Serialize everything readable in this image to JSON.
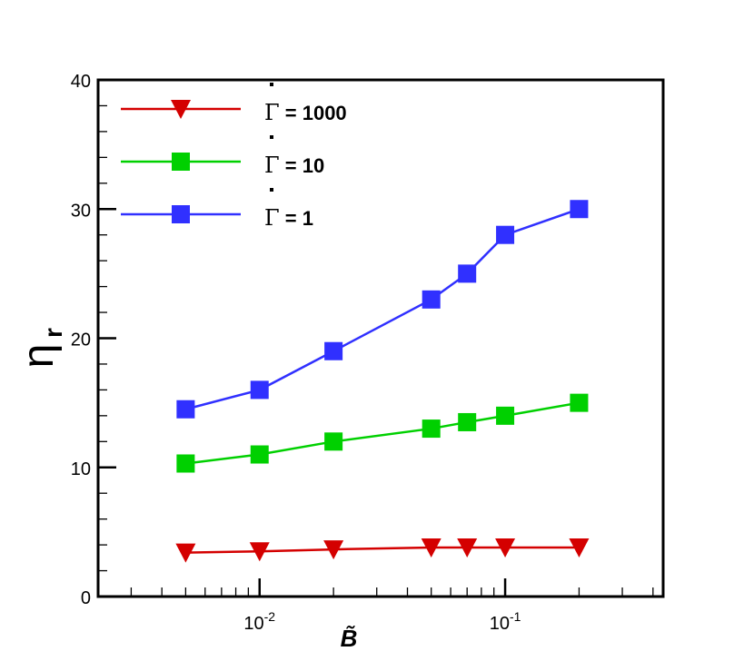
{
  "chart_data": {
    "type": "line",
    "title": "",
    "xlabel": "B̃",
    "ylabel": "η",
    "ylabel_subscript": "r",
    "xscale": "log",
    "xlim": [
      0.0022,
      0.44
    ],
    "ylim": [
      0,
      40
    ],
    "grid": false,
    "legend_position": "top-left",
    "yticks": [
      "0",
      "10",
      "20",
      "30",
      "40"
    ],
    "xticks": [
      {
        "base": "10",
        "exp": "-2",
        "value": 0.01
      },
      {
        "base": "10",
        "exp": "-1",
        "value": 0.1
      }
    ],
    "x": [
      0.005,
      0.01,
      0.02,
      0.05,
      0.07,
      0.1,
      0.2
    ],
    "series": [
      {
        "name": "Γ̇ = 1000",
        "legend_symbol": "Γ",
        "legend_text": " = 1000",
        "color": "#d40000",
        "marker": "triangle-down",
        "values": [
          3.4,
          3.5,
          3.65,
          3.8,
          3.8,
          3.8,
          3.8
        ]
      },
      {
        "name": "Γ̇ = 10",
        "legend_symbol": "Γ",
        "legend_text": " = 10",
        "color": "#00d000",
        "marker": "square",
        "values": [
          10.3,
          11,
          12,
          13,
          13.5,
          14,
          15
        ]
      },
      {
        "name": "Γ̇ = 1",
        "legend_symbol": "Γ",
        "legend_text": " = 1",
        "color": "#3030ff",
        "marker": "square",
        "values": [
          14.5,
          16,
          19,
          23,
          25,
          28,
          30
        ]
      }
    ]
  }
}
